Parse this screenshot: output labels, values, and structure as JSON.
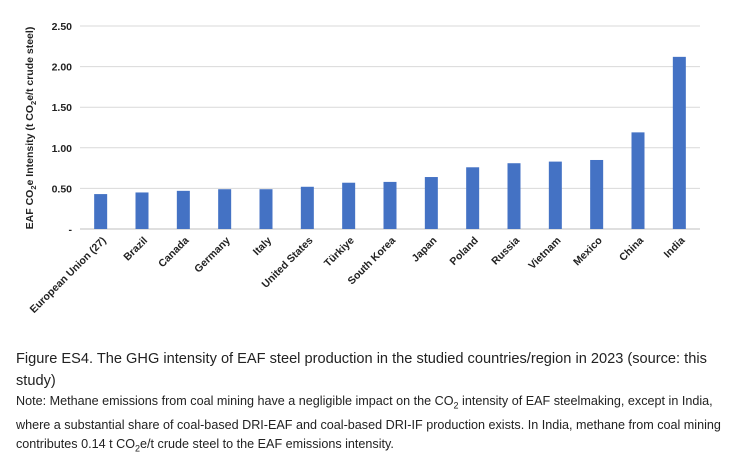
{
  "chart_data": {
    "type": "bar",
    "categories": [
      "European Union (27)",
      "Brazil",
      "Canada",
      "Germany",
      "Italy",
      "United States",
      "Türkiye",
      "South Korea",
      "Japan",
      "Poland",
      "Russia",
      "Vietnam",
      "Mexico",
      "China",
      "India"
    ],
    "values": [
      0.43,
      0.45,
      0.47,
      0.49,
      0.49,
      0.52,
      0.57,
      0.58,
      0.64,
      0.76,
      0.81,
      0.83,
      0.85,
      1.19,
      2.12
    ],
    "ylabel_parts": [
      "EAF CO",
      "2",
      "e Intensity (t CO",
      "2",
      "e/t crude steel)"
    ],
    "yticks": [
      "-",
      "0.50",
      "1.00",
      "1.50",
      "2.00",
      "2.50"
    ],
    "ylim": [
      0,
      2.5
    ],
    "bar_color": "#4472C4",
    "grid": true
  },
  "caption": {
    "figure": "Figure ES4. The GHG intensity of EAF steel production in the studied countries/region in 2023 (source: this study)",
    "note_prefix": "Note: Methane emissions from coal mining have a negligible impact on the CO",
    "note_sub1": "2",
    "note_mid": " intensity of EAF steelmaking, except in India, where a substantial share of coal-based DRI-EAF and coal-based DRI-IF production exists. In India, methane from coal mining contributes 0.14 t CO",
    "note_sub2": "2",
    "note_suffix": "e/t crude steel to the EAF emissions intensity."
  }
}
